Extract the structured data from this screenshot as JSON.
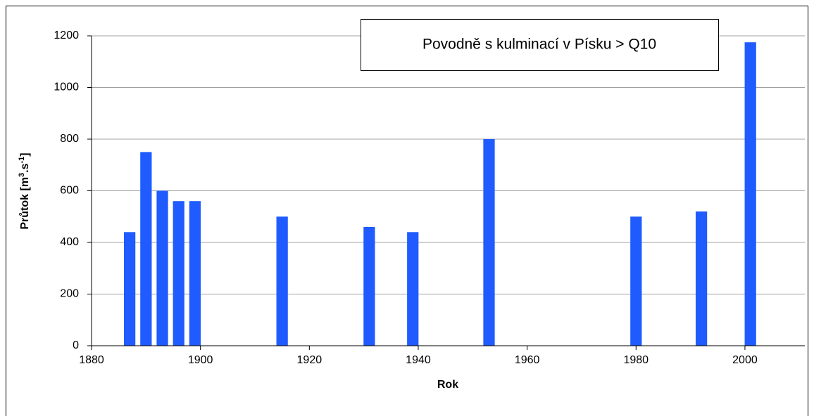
{
  "chart_data": {
    "type": "bar",
    "title": "Povodně s kulminací v Písku > Q10",
    "xlabel": "Rok",
    "ylabel": [
      "Průtok [m",
      "3",
      ".s",
      "-1",
      "]"
    ],
    "x": [
      1887,
      1890,
      1893,
      1896,
      1899,
      1915,
      1931,
      1939,
      1953,
      1980,
      1992,
      2001
    ],
    "values": [
      440,
      750,
      600,
      560,
      560,
      500,
      460,
      440,
      800,
      500,
      520,
      1175
    ],
    "color": "#1f5bff",
    "xlim": [
      1880,
      2011
    ],
    "xticks": [
      1880,
      1900,
      1920,
      1940,
      1960,
      1980,
      2000
    ],
    "ylim": [
      0,
      1200
    ],
    "yticks": [
      0,
      200,
      400,
      600,
      800,
      1000,
      1200
    ],
    "grid": true
  }
}
